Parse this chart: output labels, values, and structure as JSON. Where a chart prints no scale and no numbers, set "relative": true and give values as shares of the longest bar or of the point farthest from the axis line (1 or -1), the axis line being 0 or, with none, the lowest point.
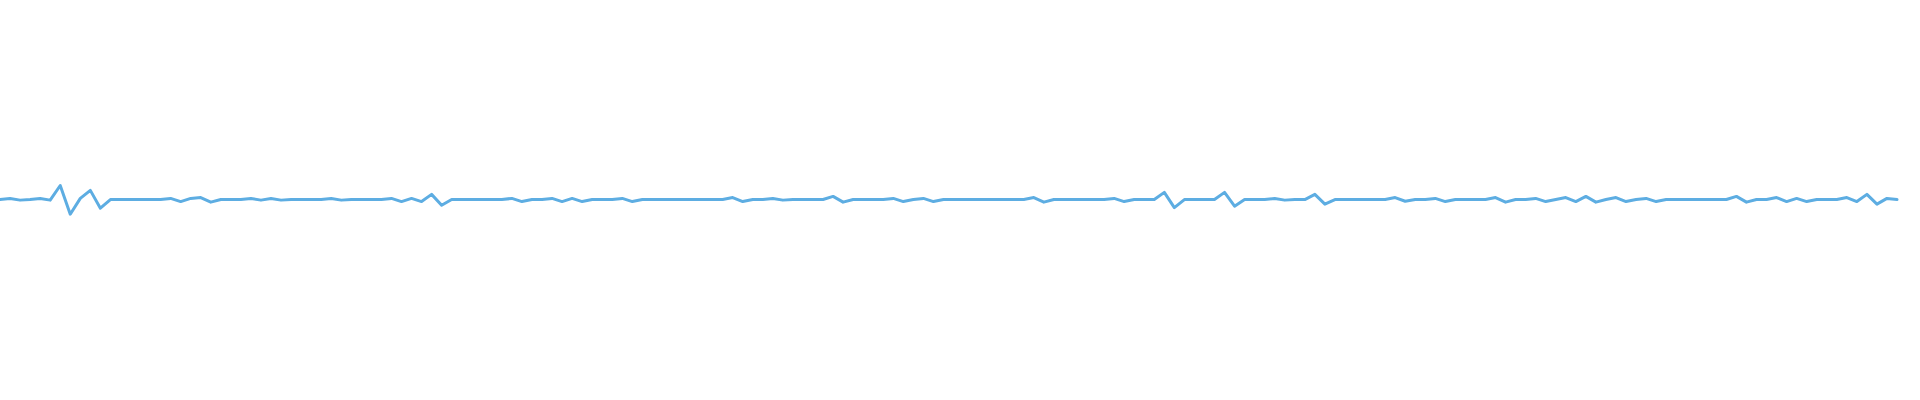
{
  "chart_data": {
    "type": "line",
    "relative": true,
    "color": "#5dade2",
    "categories": [
      null,
      null,
      null,
      null,
      null,
      null,
      null,
      null,
      null,
      null,
      null,
      null,
      null,
      null,
      null,
      null,
      null,
      null,
      null,
      null,
      null,
      null,
      null,
      null,
      null,
      null,
      null,
      null,
      null,
      null,
      null,
      null,
      null,
      null,
      null,
      null,
      null,
      null,
      null,
      null,
      null,
      null,
      null,
      null,
      null,
      null,
      null,
      null,
      null,
      null,
      null,
      null,
      null,
      null,
      null,
      null,
      null,
      null,
      null,
      null,
      null,
      null,
      null,
      null,
      null,
      null,
      null,
      null,
      null,
      null,
      null,
      null,
      null,
      null,
      null,
      null,
      null,
      null,
      null,
      null,
      null,
      null,
      null,
      null,
      null,
      null,
      null,
      null,
      null,
      null,
      null,
      null,
      null,
      null,
      null,
      null,
      null,
      null,
      null,
      null,
      null,
      null,
      null,
      null,
      null,
      null,
      null,
      null,
      null,
      null,
      null,
      null,
      null,
      null,
      null,
      null,
      null,
      null,
      null,
      null,
      null,
      null,
      null,
      null,
      null,
      null,
      null,
      null,
      null,
      null,
      null,
      null,
      null,
      null,
      null,
      null,
      null,
      null,
      null,
      null,
      null,
      null,
      null,
      null,
      null,
      null,
      null,
      null,
      null,
      null,
      null,
      null,
      null,
      null,
      null,
      null,
      null,
      null,
      null,
      null,
      null,
      null,
      null,
      null,
      null,
      null,
      null,
      null,
      null,
      null,
      null,
      null,
      null,
      null,
      null,
      null,
      null,
      null,
      null,
      null,
      null,
      null,
      null,
      null,
      null,
      null,
      null,
      null,
      null,
      null
    ],
    "values": [
      0.51,
      0.55,
      0.49,
      0.51,
      0.55,
      0.49,
      1.0,
      0,
      0.55,
      0.83,
      0.21,
      0.51,
      0.51,
      0.51,
      0.51,
      0.51,
      0.51,
      0.55,
      0.44,
      0.55,
      0.58,
      0.42,
      0.51,
      0.51,
      0.51,
      0.55,
      0.49,
      0.55,
      0.49,
      0.51,
      0.51,
      0.51,
      0.51,
      0.55,
      0.49,
      0.51,
      0.51,
      0.51,
      0.51,
      0.55,
      0.44,
      0.55,
      0.44,
      0.69,
      0.31,
      0.51,
      0.51,
      0.51,
      0.51,
      0.51,
      0.51,
      0.55,
      0.44,
      0.51,
      0.51,
      0.55,
      0.44,
      0.55,
      0.44,
      0.51,
      0.51,
      0.51,
      0.55,
      0.44,
      0.51,
      0.51,
      0.51,
      0.51,
      0.51,
      0.51,
      0.51,
      0.51,
      0.51,
      0.58,
      0.44,
      0.51,
      0.51,
      0.55,
      0.49,
      0.51,
      0.51,
      0.51,
      0.51,
      0.62,
      0.42,
      0.51,
      0.51,
      0.51,
      0.51,
      0.55,
      0.44,
      0.51,
      0.55,
      0.44,
      0.51,
      0.51,
      0.51,
      0.51,
      0.51,
      0.51,
      0.51,
      0.51,
      0.51,
      0.58,
      0.42,
      0.51,
      0.51,
      0.51,
      0.51,
      0.51,
      0.51,
      0.55,
      0.44,
      0.51,
      0.51,
      0.51,
      0.76,
      0.23,
      0.51,
      0.51,
      0.51,
      0.51,
      0.76,
      0.28,
      0.51,
      0.51,
      0.51,
      0.55,
      0.49,
      0.51,
      0.51,
      0.69,
      0.35,
      0.51,
      0.51,
      0.51,
      0.51,
      0.51,
      0.51,
      0.58,
      0.45,
      0.51,
      0.51,
      0.55,
      0.44,
      0.51,
      0.51,
      0.51,
      0.51,
      0.58,
      0.42,
      0.51,
      0.51,
      0.55,
      0.44,
      0.51,
      0.58,
      0.44,
      0.62,
      0.42,
      0.51,
      0.58,
      0.44,
      0.51,
      0.55,
      0.44,
      0.51,
      0.51,
      0.51,
      0.51,
      0.51,
      0.51,
      0.51,
      0.62,
      0.42,
      0.51,
      0.51,
      0.58,
      0.44,
      0.55,
      0.44,
      0.51,
      0.51,
      0.51,
      0.58,
      0.44,
      0.69,
      0.35,
      0.55,
      0.51
    ]
  }
}
